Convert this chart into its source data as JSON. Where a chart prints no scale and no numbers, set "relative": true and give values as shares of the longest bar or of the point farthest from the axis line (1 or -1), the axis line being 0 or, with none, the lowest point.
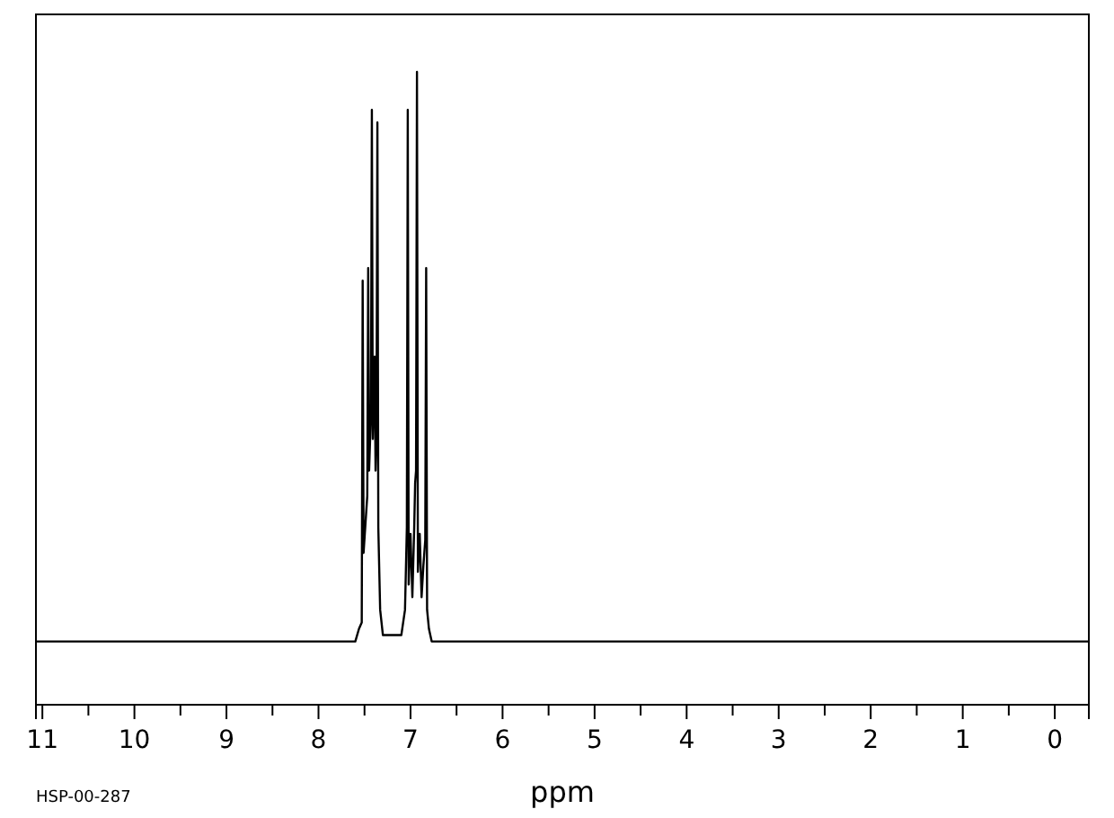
{
  "chart_data": {
    "type": "line",
    "relative": true,
    "xlabel": "ppm",
    "annotations": [
      "HSP-00-287"
    ],
    "xlim": [
      11.07,
      -0.37
    ],
    "xticks": [
      11,
      {
        "value": 10.5,
        "label": null
      },
      10,
      {
        "value": 9.5,
        "label": null
      },
      9,
      {
        "value": 8.5,
        "label": null
      },
      8,
      {
        "value": 7.5,
        "label": null
      },
      7,
      {
        "value": 6.5,
        "label": null
      },
      6,
      {
        "value": 5.5,
        "label": null
      },
      5,
      {
        "value": 4.5,
        "label": null
      },
      4,
      {
        "value": 3.5,
        "label": null
      },
      3,
      {
        "value": 2.5,
        "label": null
      },
      2,
      {
        "value": 1.5,
        "label": null
      },
      1,
      {
        "value": 0.5,
        "label": null
      },
      0
    ],
    "grid": false,
    "marker": "none",
    "line_style": "solid",
    "series": [
      {
        "color": "#000000",
        "x": [
          11.07,
          7.6,
          7.56,
          7.53,
          7.52,
          7.51,
          7.47,
          7.46,
          7.45,
          7.43,
          7.42,
          7.41,
          7.39,
          7.38,
          7.37,
          7.36,
          7.35,
          7.33,
          7.3,
          7.1,
          7.06,
          7.04,
          7.03,
          7.02,
          7.0,
          6.98,
          6.96,
          6.95,
          6.94,
          6.93,
          6.92,
          6.9,
          6.88,
          6.86,
          6.84,
          6.83,
          6.82,
          6.8,
          6.77,
          -0.37
        ],
        "values": [
          0.1,
          0.1,
          0.12,
          0.13,
          0.67,
          0.24,
          0.33,
          0.69,
          0.37,
          0.46,
          0.94,
          0.42,
          0.55,
          0.37,
          0.42,
          0.92,
          0.28,
          0.15,
          0.11,
          0.11,
          0.15,
          0.28,
          0.94,
          0.19,
          0.27,
          0.17,
          0.28,
          0.35,
          0.37,
          1.0,
          0.21,
          0.27,
          0.17,
          0.22,
          0.26,
          0.69,
          0.15,
          0.12,
          0.1,
          0.1
        ]
      }
    ]
  }
}
